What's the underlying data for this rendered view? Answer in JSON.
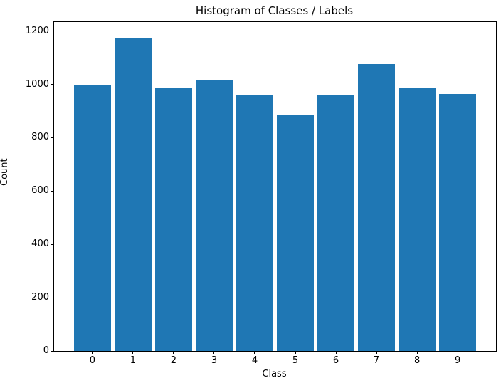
{
  "chart_data": {
    "type": "bar",
    "title": "Histogram of Classes / Labels",
    "xlabel": "Class",
    "ylabel": "Count",
    "categories": [
      "0",
      "1",
      "2",
      "3",
      "4",
      "5",
      "6",
      "7",
      "8",
      "9"
    ],
    "values": [
      995,
      1175,
      985,
      1018,
      962,
      883,
      958,
      1075,
      988,
      963
    ],
    "yticks": [
      0,
      200,
      400,
      600,
      800,
      1000,
      1200
    ],
    "xlim": [
      -0.945,
      9.945
    ],
    "ylim": [
      0,
      1233.75
    ],
    "bar_width_fraction": 0.9,
    "grid": false,
    "legend": "none",
    "colors": {
      "bar": "#1f77b4",
      "background": "#ffffff",
      "spine": "#000000",
      "text": "#000000"
    }
  }
}
